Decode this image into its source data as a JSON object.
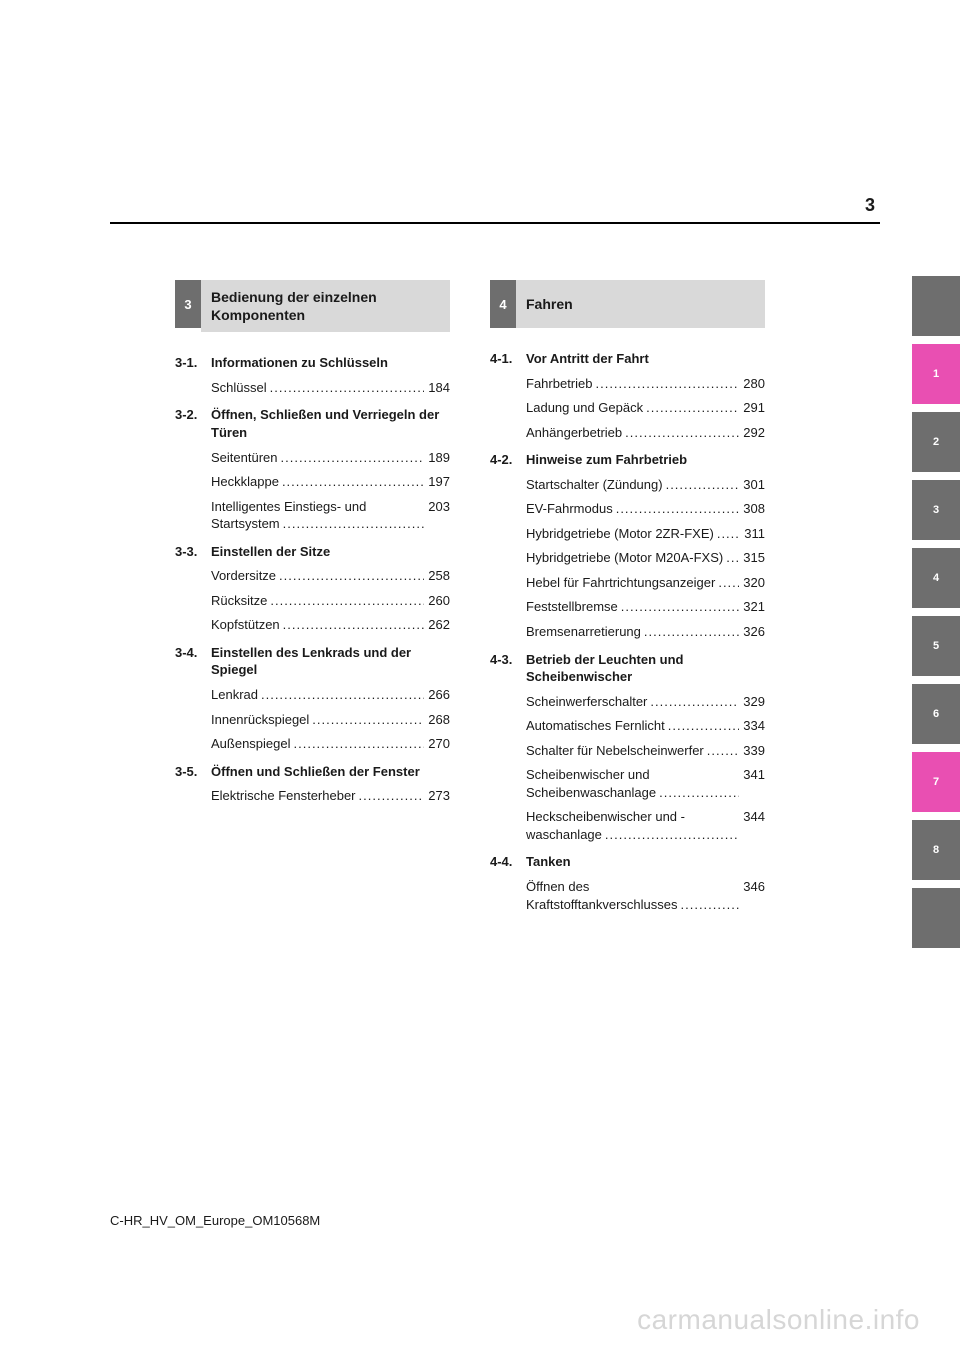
{
  "page_number": "3",
  "footer": "C-HR_HV_OM_Europe_OM10568M",
  "watermark": "carmanualsonline.info",
  "colors": {
    "grey": "#6e6e6e",
    "light_grey": "#d9d9d9",
    "highlight": "#e94fb2",
    "text": "#1a1a1a"
  },
  "chapters": [
    {
      "num": "3",
      "title": "Bedienung der einzelnen Komponenten",
      "sections": [
        {
          "num": "3-1.",
          "title": "Informationen zu Schlüsseln",
          "entries": [
            {
              "label": "Schlüssel",
              "page": "184"
            }
          ]
        },
        {
          "num": "3-2.",
          "title": "Öffnen, Schließen und Verriegeln der Türen",
          "entries": [
            {
              "label": "Seitentüren",
              "page": "189"
            },
            {
              "label": "Heckklappe",
              "page": "197"
            },
            {
              "label": "Intelligentes Einstiegs- und Startsystem",
              "page": "203"
            }
          ]
        },
        {
          "num": "3-3.",
          "title": "Einstellen der Sitze",
          "entries": [
            {
              "label": "Vordersitze",
              "page": "258"
            },
            {
              "label": "Rücksitze",
              "page": "260"
            },
            {
              "label": "Kopfstützen",
              "page": "262"
            }
          ]
        },
        {
          "num": "3-4.",
          "title": "Einstellen des Lenkrads und der Spiegel",
          "entries": [
            {
              "label": "Lenkrad",
              "page": "266"
            },
            {
              "label": "Innenrückspiegel",
              "page": "268"
            },
            {
              "label": "Außenspiegel",
              "page": "270"
            }
          ]
        },
        {
          "num": "3-5.",
          "title": "Öffnen und Schließen der Fenster",
          "entries": [
            {
              "label": "Elektrische Fensterheber",
              "page": "273"
            }
          ]
        }
      ]
    },
    {
      "num": "4",
      "title": "Fahren",
      "sections": [
        {
          "num": "4-1.",
          "title": "Vor Antritt der Fahrt",
          "entries": [
            {
              "label": "Fahrbetrieb",
              "page": "280"
            },
            {
              "label": "Ladung und Gepäck",
              "page": "291"
            },
            {
              "label": "Anhängerbetrieb",
              "page": "292"
            }
          ]
        },
        {
          "num": "4-2.",
          "title": "Hinweise zum Fahrbetrieb",
          "entries": [
            {
              "label": "Startschalter (Zündung)",
              "page": "301"
            },
            {
              "label": "EV-Fahrmodus",
              "page": "308"
            },
            {
              "label": "Hybridgetriebe (Motor 2ZR-FXE)",
              "page": "311"
            },
            {
              "label": "Hybridgetriebe (Motor M20A-FXS)",
              "page": "315"
            },
            {
              "label": "Hebel für Fahrtrichtungsanzeiger",
              "page": "320"
            },
            {
              "label": "Feststellbremse",
              "page": "321"
            },
            {
              "label": "Bremsenarretierung",
              "page": "326"
            }
          ]
        },
        {
          "num": "4-3.",
          "title": "Betrieb der Leuchten und Scheibenwischer",
          "entries": [
            {
              "label": "Scheinwerferschalter",
              "page": "329"
            },
            {
              "label": "Automatisches Fernlicht",
              "page": "334"
            },
            {
              "label": "Schalter für Nebelscheinwerfer",
              "page": "339"
            },
            {
              "label": "Scheibenwischer und Scheibenwaschanlage",
              "page": "341"
            },
            {
              "label": "Heckscheibenwischer und -waschanlage",
              "page": "344"
            }
          ]
        },
        {
          "num": "4-4.",
          "title": "Tanken",
          "entries": [
            {
              "label": "Öffnen des Kraftstofftankverschlusses",
              "page": "346"
            }
          ]
        }
      ]
    }
  ],
  "side_tabs": [
    {
      "label": "",
      "bg": "#6e6e6e"
    },
    {
      "label": "1",
      "bg": "#e94fb2"
    },
    {
      "label": "2",
      "bg": "#6e6e6e"
    },
    {
      "label": "3",
      "bg": "#6e6e6e"
    },
    {
      "label": "4",
      "bg": "#6e6e6e"
    },
    {
      "label": "5",
      "bg": "#6e6e6e"
    },
    {
      "label": "6",
      "bg": "#6e6e6e"
    },
    {
      "label": "7",
      "bg": "#e94fb2"
    },
    {
      "label": "8",
      "bg": "#6e6e6e"
    },
    {
      "label": "",
      "bg": "#6e6e6e"
    }
  ]
}
